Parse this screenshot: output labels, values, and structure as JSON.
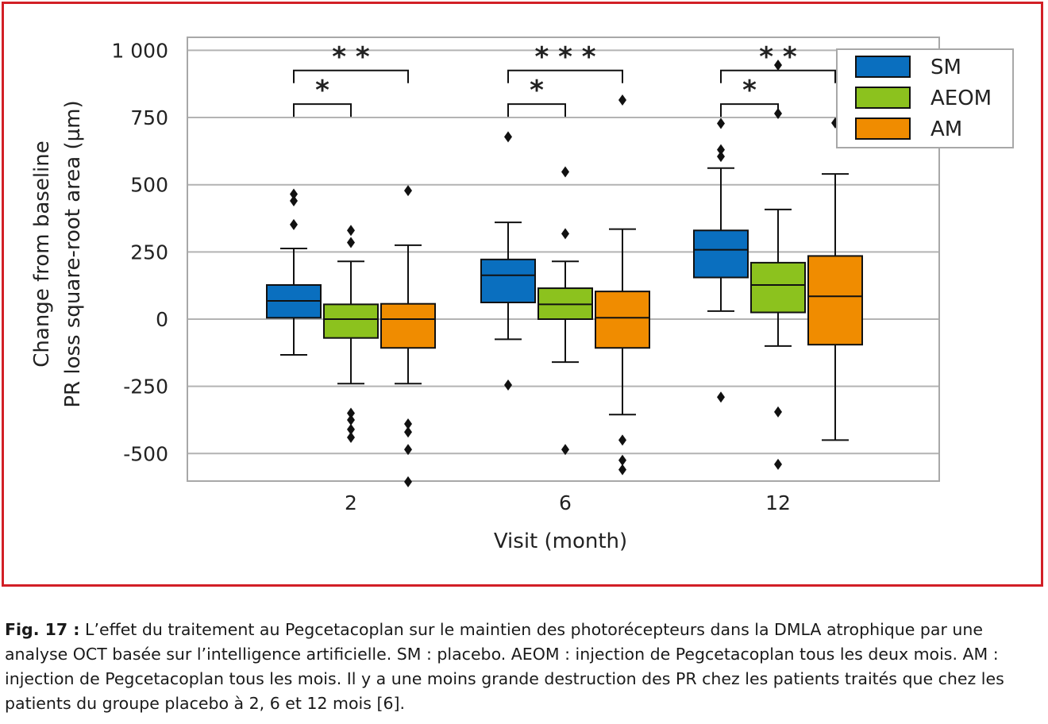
{
  "chart_data": {
    "type": "box",
    "xlabel": "Visit (month)",
    "ylabel_lines": [
      "Change from baseline",
      "PR loss square-root area (µm)"
    ],
    "ylim": [
      -600,
      1010
    ],
    "y_ticks": [
      -500,
      -250,
      0,
      250,
      500,
      750,
      1000
    ],
    "y_tick_labels": [
      "-500",
      "-250",
      "0",
      "250",
      "500",
      "750",
      "1 000"
    ],
    "grid": "horizontal",
    "legend_position": "top-right",
    "categories": [
      "2",
      "6",
      "12"
    ],
    "series": [
      {
        "name": "SM",
        "color": "#0a6fbf",
        "boxes": [
          {
            "q1": 5,
            "median": 68,
            "q3": 127,
            "whisker_low": -133,
            "whisker_high": 263,
            "outliers": [
              465,
              440,
              352
            ]
          },
          {
            "q1": 62,
            "median": 163,
            "q3": 222,
            "whisker_low": -75,
            "whisker_high": 360,
            "outliers": [
              678,
              -245
            ]
          },
          {
            "q1": 155,
            "median": 258,
            "q3": 330,
            "whisker_low": 30,
            "whisker_high": 562,
            "outliers": [
              728,
              630,
              605,
              -290
            ]
          }
        ]
      },
      {
        "name": "AEOM",
        "color": "#8cc21e",
        "boxes": [
          {
            "q1": -70,
            "median": 0,
            "q3": 55,
            "whisker_low": -240,
            "whisker_high": 215,
            "outliers": [
              330,
              285,
              -350,
              -375,
              -410,
              -440
            ]
          },
          {
            "q1": 0,
            "median": 55,
            "q3": 115,
            "whisker_low": -160,
            "whisker_high": 215,
            "outliers": [
              548,
              318,
              -485
            ]
          },
          {
            "q1": 25,
            "median": 127,
            "q3": 210,
            "whisker_low": -100,
            "whisker_high": 408,
            "outliers": [
              945,
              765,
              -345,
              -540
            ]
          }
        ]
      },
      {
        "name": "AM",
        "color": "#f08c00",
        "boxes": [
          {
            "q1": -107,
            "median": 0,
            "q3": 57,
            "whisker_low": -240,
            "whisker_high": 275,
            "outliers": [
              478,
              -390,
              -420,
              -485,
              -605
            ]
          },
          {
            "q1": -107,
            "median": 5,
            "q3": 103,
            "whisker_low": -355,
            "whisker_high": 335,
            "outliers": [
              815,
              -450,
              -525,
              -560
            ]
          },
          {
            "q1": -95,
            "median": 85,
            "q3": 235,
            "whisker_low": -450,
            "whisker_high": 540,
            "outliers": [
              730
            ]
          }
        ]
      }
    ],
    "significance": [
      {
        "category_index": 0,
        "from_series": 0,
        "to_series": 1,
        "label": "*",
        "level": 800
      },
      {
        "category_index": 0,
        "from_series": 0,
        "to_series": 2,
        "label": "* *",
        "level": 925
      },
      {
        "category_index": 1,
        "from_series": 0,
        "to_series": 1,
        "label": "*",
        "level": 800
      },
      {
        "category_index": 1,
        "from_series": 0,
        "to_series": 2,
        "label": "* * *",
        "level": 925
      },
      {
        "category_index": 2,
        "from_series": 0,
        "to_series": 1,
        "label": "*",
        "level": 800
      },
      {
        "category_index": 2,
        "from_series": 0,
        "to_series": 2,
        "label": "* *",
        "level": 925
      }
    ]
  },
  "caption": {
    "fig_label": "Fig. 17 :",
    "text": " L’effet du traitement au Pegcetacoplan sur le maintien des photorécepteurs dans la DMLA atrophique par une analyse OCT basée sur l’intelligence artificielle. SM : placebo. AEOM : injection de Pegcetacoplan tous les deux mois. AM : injection de Pegcetacoplan tous les mois. Il y a une moins grande destruction des PR chez les patients traités que chez les patients du groupe placebo à 2, 6 et 12 mois [6]."
  }
}
